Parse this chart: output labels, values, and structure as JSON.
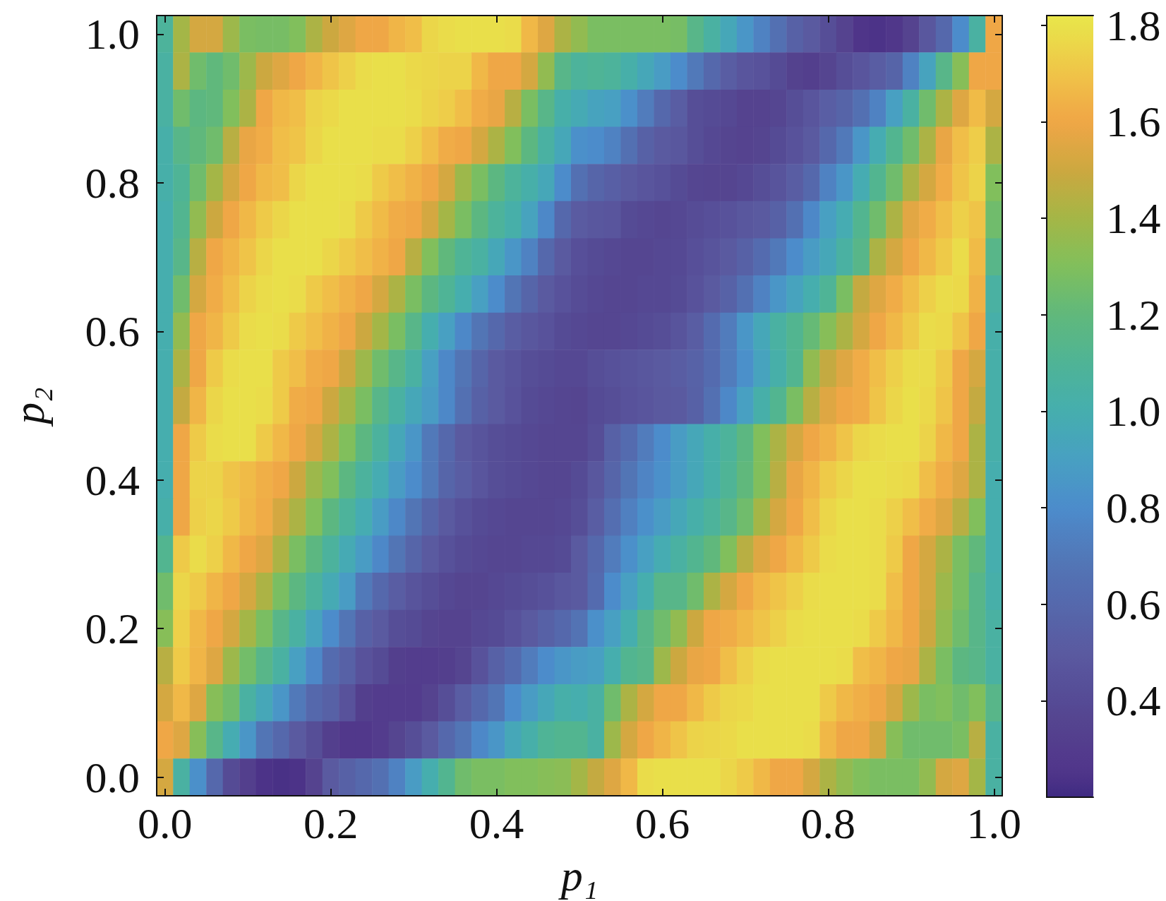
{
  "chart_data": {
    "type": "heatmap",
    "xlabel": "p₁",
    "ylabel": "p₂",
    "categories": [
      "0.0",
      null,
      null,
      null,
      null,
      null,
      null,
      null,
      null,
      null,
      "0.2",
      null,
      null,
      null,
      null,
      null,
      null,
      null,
      null,
      null,
      "0.4",
      null,
      null,
      null,
      null,
      null,
      null,
      null,
      null,
      null,
      "0.6",
      null,
      null,
      null,
      null,
      null,
      null,
      null,
      null,
      null,
      "0.8",
      null,
      null,
      null,
      null,
      null,
      null,
      null,
      null,
      null,
      "1.0"
    ],
    "y_categories": [
      "1.0",
      null,
      null,
      null,
      "0.8",
      null,
      null,
      null,
      "0.6",
      null,
      null,
      null,
      "0.4",
      null,
      null,
      null,
      "0.2",
      null,
      null,
      null,
      "0.0"
    ],
    "cells": [
      [
        1.08,
        1.4,
        1.52,
        1.52,
        1.38,
        1.28,
        1.27,
        1.27,
        1.3,
        1.42,
        1.5,
        1.55,
        1.6,
        1.6,
        1.65,
        1.68,
        1.76,
        1.78,
        1.79,
        1.79,
        1.79,
        1.78,
        1.66,
        1.55,
        1.42,
        1.35,
        1.28,
        1.28,
        1.28,
        1.28,
        1.28,
        1.27,
        1.15,
        1.05,
        0.95,
        0.85,
        0.75,
        0.65,
        0.55,
        0.5,
        0.42,
        0.35,
        0.25,
        0.24,
        0.26,
        0.35,
        0.48,
        0.6,
        0.8,
        1.05,
        1.6
      ],
      [
        1.05,
        1.42,
        1.25,
        1.2,
        1.25,
        1.38,
        1.5,
        1.55,
        1.6,
        1.65,
        1.7,
        1.74,
        1.78,
        1.79,
        1.79,
        1.77,
        1.76,
        1.75,
        1.75,
        1.66,
        1.6,
        1.6,
        1.52,
        1.35,
        1.15,
        1.08,
        1.1,
        1.08,
        1.02,
        0.95,
        0.88,
        0.8,
        0.7,
        0.6,
        0.52,
        0.47,
        0.45,
        0.4,
        0.34,
        0.32,
        0.36,
        0.42,
        0.47,
        0.52,
        0.57,
        0.75,
        0.92,
        1.15,
        1.32,
        1.6,
        1.6
      ],
      [
        1.05,
        1.25,
        1.18,
        1.2,
        1.3,
        1.42,
        1.6,
        1.66,
        1.68,
        1.75,
        1.77,
        1.79,
        1.79,
        1.79,
        1.79,
        1.78,
        1.75,
        1.73,
        1.68,
        1.62,
        1.58,
        1.45,
        1.28,
        1.15,
        1.02,
        0.97,
        0.92,
        0.9,
        0.82,
        0.72,
        0.6,
        0.52,
        0.42,
        0.4,
        0.38,
        0.35,
        0.35,
        0.37,
        0.42,
        0.47,
        0.53,
        0.57,
        0.65,
        0.75,
        0.9,
        1.05,
        1.25,
        1.42,
        1.55,
        1.67,
        1.52
      ],
      [
        1.02,
        1.15,
        1.2,
        1.25,
        1.45,
        1.58,
        1.62,
        1.68,
        1.7,
        1.76,
        1.79,
        1.79,
        1.79,
        1.78,
        1.78,
        1.74,
        1.68,
        1.62,
        1.6,
        1.52,
        1.42,
        1.3,
        1.18,
        1.05,
        0.95,
        0.82,
        0.8,
        0.75,
        0.65,
        0.55,
        0.5,
        0.48,
        0.42,
        0.38,
        0.36,
        0.35,
        0.36,
        0.4,
        0.45,
        0.5,
        0.6,
        0.7,
        0.85,
        0.98,
        1.12,
        1.25,
        1.42,
        1.58,
        1.68,
        1.73,
        1.42
      ],
      [
        1.02,
        1.1,
        1.25,
        1.4,
        1.52,
        1.6,
        1.66,
        1.68,
        1.76,
        1.79,
        1.79,
        1.79,
        1.78,
        1.72,
        1.68,
        1.64,
        1.6,
        1.52,
        1.38,
        1.28,
        1.18,
        1.08,
        1.02,
        0.95,
        0.8,
        0.65,
        0.58,
        0.54,
        0.5,
        0.47,
        0.44,
        0.4,
        0.37,
        0.36,
        0.36,
        0.38,
        0.42,
        0.46,
        0.52,
        0.6,
        0.75,
        0.85,
        0.98,
        1.12,
        1.25,
        1.42,
        1.52,
        1.62,
        1.7,
        1.75,
        1.3
      ],
      [
        1.0,
        1.12,
        1.35,
        1.5,
        1.6,
        1.66,
        1.72,
        1.76,
        1.79,
        1.79,
        1.79,
        1.78,
        1.72,
        1.67,
        1.62,
        1.6,
        1.52,
        1.4,
        1.28,
        1.18,
        1.08,
        1.02,
        0.92,
        0.78,
        0.6,
        0.51,
        0.48,
        0.47,
        0.4,
        0.38,
        0.37,
        0.38,
        0.41,
        0.43,
        0.45,
        0.48,
        0.5,
        0.55,
        0.65,
        0.78,
        0.9,
        0.98,
        1.12,
        1.25,
        1.42,
        1.56,
        1.62,
        1.68,
        1.74,
        1.7,
        1.25
      ],
      [
        1.0,
        1.15,
        1.45,
        1.6,
        1.65,
        1.7,
        1.76,
        1.79,
        1.79,
        1.79,
        1.76,
        1.72,
        1.68,
        1.64,
        1.6,
        1.45,
        1.3,
        1.2,
        1.1,
        1.05,
        0.95,
        0.85,
        0.75,
        0.6,
        0.5,
        0.43,
        0.4,
        0.38,
        0.37,
        0.37,
        0.38,
        0.39,
        0.43,
        0.46,
        0.5,
        0.55,
        0.62,
        0.7,
        0.8,
        0.88,
        0.95,
        1.05,
        1.15,
        1.42,
        1.52,
        1.6,
        1.66,
        1.72,
        1.78,
        1.67,
        1.15
      ],
      [
        1.0,
        1.25,
        1.52,
        1.62,
        1.68,
        1.75,
        1.78,
        1.79,
        1.78,
        1.72,
        1.68,
        1.64,
        1.6,
        1.52,
        1.42,
        1.28,
        1.18,
        1.1,
        1.0,
        0.9,
        0.8,
        0.68,
        0.58,
        0.5,
        0.45,
        0.41,
        0.38,
        0.37,
        0.37,
        0.38,
        0.38,
        0.4,
        0.45,
        0.5,
        0.56,
        0.65,
        0.75,
        0.85,
        0.92,
        1.0,
        1.1,
        1.28,
        1.48,
        1.55,
        1.62,
        1.68,
        1.74,
        1.78,
        1.77,
        1.64,
        1.05
      ],
      [
        1.0,
        1.35,
        1.6,
        1.65,
        1.72,
        1.78,
        1.79,
        1.78,
        1.72,
        1.68,
        1.64,
        1.6,
        1.5,
        1.4,
        1.28,
        1.15,
        1.0,
        0.9,
        0.78,
        0.68,
        0.6,
        0.52,
        0.48,
        0.45,
        0.4,
        0.38,
        0.37,
        0.37,
        0.38,
        0.4,
        0.42,
        0.46,
        0.52,
        0.62,
        0.72,
        0.85,
        0.95,
        1.05,
        1.12,
        1.22,
        1.32,
        1.42,
        1.52,
        1.6,
        1.66,
        1.72,
        1.78,
        1.77,
        1.7,
        1.6,
        1.02
      ],
      [
        1.0,
        1.42,
        1.6,
        1.72,
        1.78,
        1.79,
        1.79,
        1.72,
        1.68,
        1.62,
        1.6,
        1.5,
        1.38,
        1.25,
        1.15,
        1.05,
        0.9,
        0.78,
        0.68,
        0.58,
        0.5,
        0.46,
        0.42,
        0.4,
        0.38,
        0.38,
        0.42,
        0.44,
        0.46,
        0.48,
        0.5,
        0.52,
        0.56,
        0.62,
        0.72,
        0.82,
        0.92,
        1.02,
        1.12,
        1.35,
        1.48,
        1.55,
        1.62,
        1.68,
        1.74,
        1.78,
        1.78,
        1.72,
        1.6,
        1.52,
        1.02
      ],
      [
        1.0,
        1.48,
        1.65,
        1.76,
        1.79,
        1.79,
        1.78,
        1.72,
        1.62,
        1.6,
        1.5,
        1.4,
        1.28,
        1.15,
        1.05,
        0.95,
        0.88,
        0.78,
        0.65,
        0.55,
        0.5,
        0.45,
        0.4,
        0.38,
        0.37,
        0.36,
        0.4,
        0.42,
        0.45,
        0.47,
        0.49,
        0.5,
        0.55,
        0.65,
        0.78,
        0.9,
        1.02,
        1.12,
        1.28,
        1.45,
        1.55,
        1.6,
        1.62,
        1.7,
        1.76,
        1.79,
        1.77,
        1.7,
        1.6,
        1.48,
        1.02
      ],
      [
        1.0,
        1.6,
        1.72,
        1.78,
        1.79,
        1.79,
        1.72,
        1.66,
        1.6,
        1.52,
        1.42,
        1.3,
        1.18,
        1.07,
        0.95,
        0.85,
        0.7,
        0.6,
        0.5,
        0.46,
        0.42,
        0.4,
        0.38,
        0.37,
        0.37,
        0.37,
        0.42,
        0.55,
        0.62,
        0.72,
        0.8,
        0.88,
        0.95,
        1.02,
        1.08,
        1.18,
        1.3,
        1.42,
        1.52,
        1.6,
        1.64,
        1.7,
        1.76,
        1.78,
        1.79,
        1.79,
        1.75,
        1.66,
        1.6,
        1.42,
        1.02
      ],
      [
        1.0,
        1.6,
        1.75,
        1.75,
        1.7,
        1.67,
        1.63,
        1.6,
        1.5,
        1.38,
        1.3,
        1.18,
        1.07,
        0.98,
        0.88,
        0.8,
        0.7,
        0.58,
        0.52,
        0.47,
        0.42,
        0.4,
        0.38,
        0.37,
        0.37,
        0.4,
        0.48,
        0.58,
        0.68,
        0.76,
        0.82,
        0.88,
        0.95,
        1.02,
        1.1,
        1.2,
        1.3,
        1.45,
        1.58,
        1.65,
        1.72,
        1.76,
        1.79,
        1.79,
        1.78,
        1.77,
        1.68,
        1.62,
        1.55,
        1.42,
        1.0
      ],
      [
        1.02,
        1.6,
        1.74,
        1.76,
        1.72,
        1.66,
        1.62,
        1.52,
        1.42,
        1.3,
        1.18,
        1.08,
        0.98,
        0.88,
        0.78,
        0.68,
        0.58,
        0.5,
        0.44,
        0.4,
        0.38,
        0.37,
        0.37,
        0.37,
        0.38,
        0.42,
        0.52,
        0.64,
        0.74,
        0.82,
        0.88,
        0.95,
        1.02,
        1.08,
        1.15,
        1.25,
        1.4,
        1.52,
        1.6,
        1.68,
        1.76,
        1.79,
        1.79,
        1.78,
        1.74,
        1.68,
        1.62,
        1.55,
        1.45,
        1.3,
        1.0
      ],
      [
        1.12,
        1.72,
        1.78,
        1.74,
        1.66,
        1.6,
        1.55,
        1.42,
        1.28,
        1.18,
        1.07,
        0.97,
        0.88,
        0.78,
        0.68,
        0.58,
        0.5,
        0.44,
        0.4,
        0.38,
        0.37,
        0.37,
        0.38,
        0.38,
        0.4,
        0.5,
        0.6,
        0.72,
        0.82,
        0.9,
        0.98,
        1.05,
        1.12,
        1.2,
        1.3,
        1.45,
        1.55,
        1.6,
        1.66,
        1.72,
        1.78,
        1.79,
        1.79,
        1.78,
        1.72,
        1.6,
        1.52,
        1.42,
        1.28,
        1.2,
        1.0
      ],
      [
        1.25,
        1.76,
        1.72,
        1.65,
        1.6,
        1.52,
        1.42,
        1.28,
        1.18,
        1.07,
        0.97,
        0.88,
        0.7,
        0.6,
        0.52,
        0.46,
        0.42,
        0.38,
        0.36,
        0.36,
        0.38,
        0.4,
        0.42,
        0.44,
        0.48,
        0.5,
        0.62,
        0.8,
        0.9,
        1.0,
        1.15,
        1.15,
        1.25,
        1.42,
        1.52,
        1.6,
        1.66,
        1.7,
        1.74,
        1.78,
        1.79,
        1.79,
        1.79,
        1.78,
        1.68,
        1.6,
        1.52,
        1.38,
        1.28,
        1.15,
        1.02
      ],
      [
        1.32,
        1.74,
        1.66,
        1.6,
        1.52,
        1.4,
        1.28,
        1.15,
        1.05,
        0.92,
        0.8,
        0.68,
        0.55,
        0.5,
        0.42,
        0.4,
        0.36,
        0.35,
        0.35,
        0.38,
        0.4,
        0.45,
        0.5,
        0.55,
        0.6,
        0.67,
        0.82,
        0.9,
        1.0,
        1.15,
        1.25,
        1.35,
        1.5,
        1.6,
        1.62,
        1.66,
        1.7,
        1.74,
        1.78,
        1.79,
        1.79,
        1.79,
        1.78,
        1.72,
        1.66,
        1.6,
        1.5,
        1.35,
        1.25,
        1.15,
        1.05
      ],
      [
        1.45,
        1.72,
        1.65,
        1.55,
        1.38,
        1.26,
        1.15,
        1.05,
        0.9,
        0.78,
        0.62,
        0.55,
        0.45,
        0.4,
        0.32,
        0.31,
        0.31,
        0.32,
        0.36,
        0.45,
        0.55,
        0.62,
        0.72,
        0.8,
        0.85,
        0.88,
        0.9,
        1.0,
        1.12,
        1.15,
        1.38,
        1.5,
        1.58,
        1.6,
        1.68,
        1.74,
        1.78,
        1.79,
        1.79,
        1.79,
        1.79,
        1.78,
        1.68,
        1.65,
        1.6,
        1.58,
        1.42,
        1.28,
        1.18,
        1.15,
        1.05
      ],
      [
        1.52,
        1.66,
        1.55,
        1.32,
        1.25,
        1.05,
        0.95,
        0.85,
        0.7,
        0.6,
        0.55,
        0.45,
        0.32,
        0.3,
        0.3,
        0.3,
        0.35,
        0.42,
        0.52,
        0.6,
        0.68,
        0.8,
        0.88,
        0.95,
        1.02,
        1.0,
        1.05,
        1.25,
        1.42,
        1.52,
        1.6,
        1.6,
        1.66,
        1.72,
        1.76,
        1.77,
        1.79,
        1.79,
        1.79,
        1.79,
        1.72,
        1.66,
        1.63,
        1.6,
        1.52,
        1.38,
        1.28,
        1.3,
        1.25,
        1.3,
        1.15
      ],
      [
        1.6,
        1.55,
        1.32,
        1.15,
        0.98,
        0.85,
        0.68,
        0.6,
        0.5,
        0.42,
        0.32,
        0.27,
        0.27,
        0.3,
        0.36,
        0.42,
        0.5,
        0.6,
        0.68,
        0.78,
        0.85,
        0.95,
        1.02,
        1.1,
        1.12,
        1.12,
        1.05,
        1.38,
        1.52,
        1.6,
        1.65,
        1.7,
        1.75,
        1.76,
        1.77,
        1.79,
        1.79,
        1.79,
        1.79,
        1.78,
        1.66,
        1.6,
        1.6,
        1.52,
        1.32,
        1.25,
        1.25,
        1.25,
        1.28,
        1.45,
        1.05
      ],
      [
        1.52,
        1.05,
        0.82,
        0.6,
        0.4,
        0.32,
        0.24,
        0.23,
        0.24,
        0.35,
        0.5,
        0.55,
        0.6,
        0.65,
        0.75,
        0.88,
        1.0,
        1.12,
        1.25,
        1.28,
        1.28,
        1.3,
        1.3,
        1.32,
        1.33,
        1.4,
        1.48,
        1.55,
        1.66,
        1.78,
        1.79,
        1.79,
        1.79,
        1.79,
        1.76,
        1.72,
        1.66,
        1.6,
        1.6,
        1.52,
        1.42,
        1.35,
        1.3,
        1.28,
        1.28,
        1.28,
        1.35,
        1.52,
        1.55,
        1.4,
        1.05
      ]
    ],
    "clim": [
      0.2,
      1.82
    ],
    "cticks": [
      0.4,
      0.6,
      0.8,
      {
        "value": 1,
        "label": "1.0"
      },
      1.2,
      1.4,
      1.6,
      1.8
    ]
  }
}
